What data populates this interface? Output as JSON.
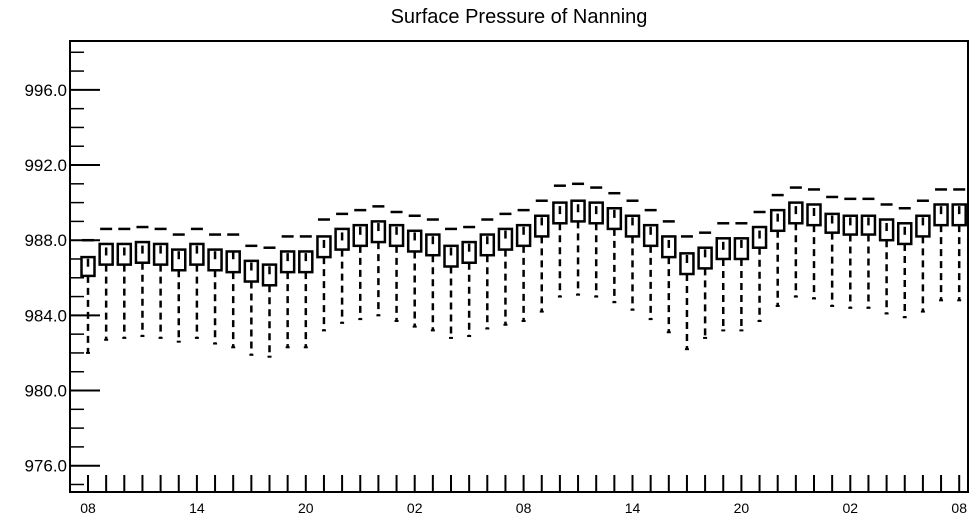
{
  "chart_data": {
    "type": "boxplot",
    "title": "Surface Pressure of Nanning",
    "xlabel": "",
    "ylabel": "",
    "ylim": [
      974.6,
      998.6
    ],
    "yticks": [
      "976.0",
      "980.0",
      "984.0",
      "988.0",
      "992.0",
      "996.0"
    ],
    "xtick_labels": [
      "08",
      "14",
      "20",
      "02",
      "08",
      "14",
      "20",
      "02",
      "08"
    ],
    "x": [
      0,
      1,
      2,
      3,
      4,
      5,
      6,
      7,
      8,
      9,
      10,
      11,
      12,
      13,
      14,
      15,
      16,
      17,
      18,
      19,
      20,
      21,
      22,
      23,
      24,
      25,
      26,
      27,
      28,
      29,
      30,
      31,
      32,
      33,
      34,
      35,
      36,
      37,
      38,
      39,
      40,
      41,
      42,
      43,
      44,
      45,
      46,
      47,
      48
    ],
    "whisker_top": [
      988.0,
      988.6,
      988.6,
      988.7,
      988.6,
      988.3,
      988.6,
      988.3,
      988.3,
      987.7,
      987.6,
      988.2,
      988.2,
      989.1,
      989.4,
      989.6,
      989.8,
      989.5,
      989.3,
      989.1,
      988.6,
      988.7,
      989.1,
      989.4,
      989.6,
      990.1,
      990.9,
      991.0,
      990.8,
      990.5,
      990.1,
      989.6,
      989.0,
      988.2,
      988.4,
      988.9,
      988.9,
      989.5,
      990.4,
      990.8,
      990.7,
      990.3,
      990.2,
      990.2,
      989.9,
      989.7,
      990.1,
      990.7,
      990.7
    ],
    "box_top": [
      987.1,
      987.8,
      987.8,
      987.9,
      987.8,
      987.5,
      987.8,
      987.5,
      987.4,
      986.9,
      986.7,
      987.4,
      987.4,
      988.2,
      988.6,
      988.8,
      989.0,
      988.8,
      988.5,
      988.3,
      987.7,
      987.9,
      988.3,
      988.6,
      988.8,
      989.3,
      990.0,
      990.1,
      990.0,
      989.7,
      989.3,
      988.8,
      988.2,
      987.3,
      987.6,
      988.1,
      988.1,
      988.7,
      989.6,
      990.0,
      989.9,
      989.4,
      989.3,
      989.3,
      989.1,
      988.9,
      989.3,
      989.9,
      989.9
    ],
    "median": [
      986.8,
      987.4,
      987.4,
      987.5,
      987.5,
      987.2,
      987.5,
      987.2,
      987.2,
      986.6,
      986.4,
      987.1,
      987.1,
      987.8,
      988.2,
      988.5,
      988.7,
      988.5,
      988.2,
      988.0,
      987.4,
      987.6,
      988.0,
      988.3,
      988.5,
      989.0,
      989.6,
      989.7,
      989.6,
      989.4,
      989.0,
      988.5,
      987.8,
      987.0,
      987.3,
      987.7,
      987.8,
      988.3,
      989.2,
      989.6,
      989.5,
      989.1,
      989.0,
      989.0,
      988.7,
      988.5,
      989.0,
      989.6,
      989.6
    ],
    "box_bottom": [
      986.1,
      986.7,
      986.7,
      986.8,
      986.7,
      986.4,
      986.7,
      986.4,
      986.3,
      985.8,
      985.6,
      986.3,
      986.3,
      987.1,
      987.5,
      987.7,
      987.9,
      987.7,
      987.4,
      987.2,
      986.6,
      986.8,
      987.2,
      987.5,
      987.7,
      988.2,
      988.9,
      989.0,
      988.9,
      988.6,
      988.2,
      987.7,
      987.1,
      986.2,
      986.5,
      987.0,
      987.0,
      987.6,
      988.5,
      988.9,
      988.8,
      988.4,
      988.3,
      988.3,
      988.0,
      987.8,
      988.2,
      988.8,
      988.8
    ],
    "whisker_bottom": [
      982.0,
      982.7,
      982.8,
      982.9,
      982.8,
      982.6,
      982.8,
      982.5,
      982.3,
      981.9,
      981.8,
      982.3,
      982.3,
      983.2,
      983.6,
      983.8,
      984.0,
      983.7,
      983.4,
      983.2,
      982.8,
      982.9,
      983.3,
      983.5,
      983.7,
      984.2,
      985.0,
      985.1,
      985.0,
      984.7,
      984.3,
      983.8,
      983.1,
      982.2,
      982.8,
      983.2,
      983.2,
      983.7,
      984.5,
      985.0,
      984.9,
      984.5,
      984.4,
      984.4,
      984.1,
      983.9,
      984.2,
      984.8,
      984.8
    ],
    "grid": false,
    "legend": "none"
  }
}
